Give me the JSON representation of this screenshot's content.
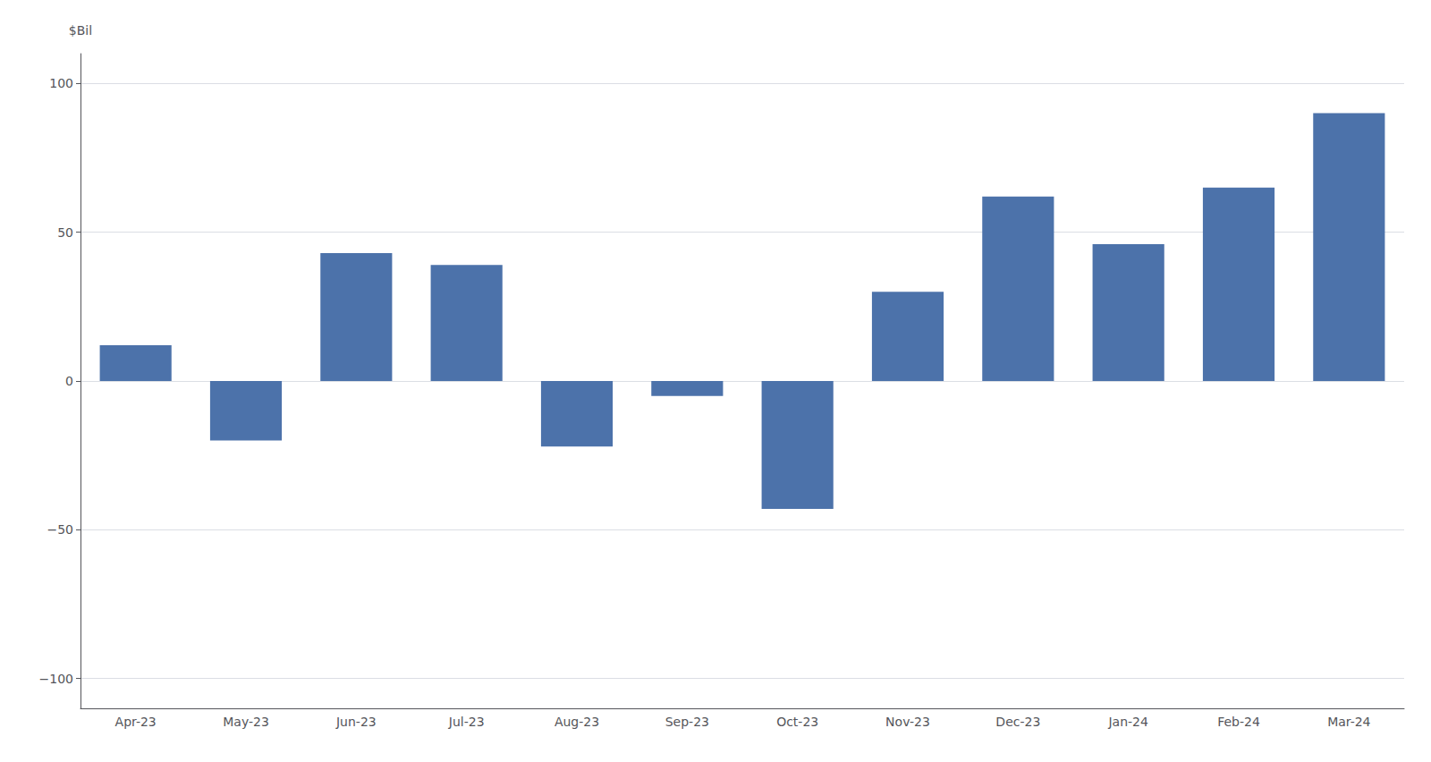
{
  "chart_data": {
    "type": "bar",
    "categories": [
      "Apr-23",
      "May-23",
      "Jun-23",
      "Jul-23",
      "Aug-23",
      "Sep-23",
      "Oct-23",
      "Nov-23",
      "Dec-23",
      "Jan-24",
      "Feb-24",
      "Mar-24"
    ],
    "values": [
      12,
      -20,
      43,
      39,
      -22,
      -5,
      -43,
      30,
      62,
      46,
      65,
      90
    ],
    "color": "#4c72aa",
    "ylabel": "$Bil",
    "ylim": [
      -110,
      110
    ],
    "yticks": [
      {
        "value": -100,
        "label": "−100"
      },
      {
        "value": -50,
        "label": "−50"
      },
      0,
      50,
      100
    ],
    "grid": true
  }
}
